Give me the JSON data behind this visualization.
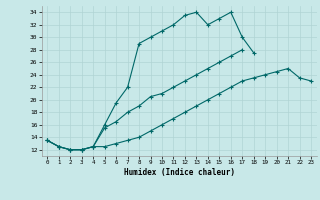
{
  "xlabel": "Humidex (Indice chaleur)",
  "ylabel": "",
  "bg_color": "#c8e8e8",
  "grid_color": "#b0d4d4",
  "line_color": "#006868",
  "xlim": [
    -0.5,
    23.5
  ],
  "ylim": [
    11,
    35
  ],
  "yticks": [
    12,
    14,
    16,
    18,
    20,
    22,
    24,
    26,
    28,
    30,
    32,
    34
  ],
  "xticks": [
    0,
    1,
    2,
    3,
    4,
    5,
    6,
    7,
    8,
    9,
    10,
    11,
    12,
    13,
    14,
    15,
    16,
    17,
    18,
    19,
    20,
    21,
    22,
    23
  ],
  "line1_x": [
    0,
    1,
    2,
    3,
    4,
    5,
    6,
    7,
    8,
    9,
    10,
    11,
    12,
    13,
    14,
    15,
    16,
    17,
    18
  ],
  "line1_y": [
    13.5,
    12.5,
    12,
    12,
    12.5,
    16,
    19.5,
    22,
    29,
    30,
    31,
    32,
    33.5,
    34,
    32,
    33,
    34,
    30,
    27.5
  ],
  "line2_x": [
    0,
    1,
    2,
    3,
    4,
    5,
    6,
    7,
    8,
    9,
    10,
    11,
    12,
    13,
    14,
    15,
    16,
    17
  ],
  "line2_y": [
    13.5,
    12.5,
    12,
    12,
    12.5,
    15.5,
    16.5,
    18,
    19,
    20.5,
    21,
    22,
    23,
    24,
    25,
    26,
    27,
    28
  ],
  "line3_x": [
    0,
    1,
    2,
    3,
    4,
    5,
    6,
    7,
    8,
    9,
    10,
    11,
    12,
    13,
    14,
    15,
    16,
    17,
    18,
    19,
    20,
    21,
    22,
    23
  ],
  "line3_y": [
    13.5,
    12.5,
    12,
    12,
    12.5,
    12.5,
    13,
    13.5,
    14,
    15,
    16,
    17,
    18,
    19,
    20,
    21,
    22,
    23,
    23.5,
    24,
    24.5,
    25,
    23.5,
    23
  ]
}
